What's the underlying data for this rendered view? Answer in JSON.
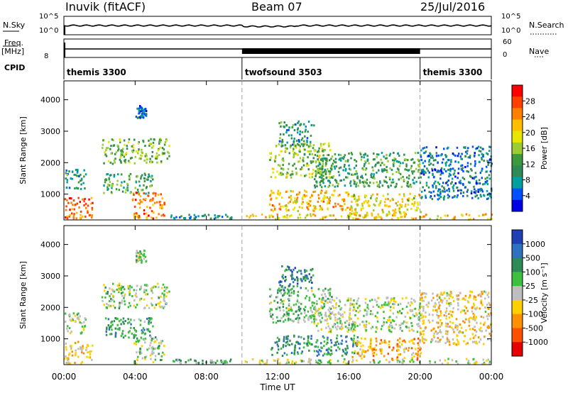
{
  "header": {
    "station": "Inuvik (fitACF)",
    "beam": "Beam 07",
    "date": "25/Jul/2016"
  },
  "side_labels": {
    "nsky": "N.Sky",
    "nsearch": "N.Search",
    "freq": "Freq.",
    "mhz": "[MHz]",
    "nave": "Nave",
    "cpid": "CPID",
    "nsky_ticks": [
      "10^5",
      "10^0"
    ],
    "nsearch_ticks": [
      "10^5",
      "10^0"
    ],
    "freq_ticks": [
      "8"
    ],
    "nave_ticks": [
      "60",
      "0"
    ]
  },
  "cpid_segments": [
    {
      "label": "themis 3300",
      "start": 0,
      "end": 10
    },
    {
      "label": "twofsound 3503",
      "start": 10,
      "end": 20
    },
    {
      "label": "themis 3300",
      "start": 20,
      "end": 24
    }
  ],
  "chart_data": [
    {
      "type": "heatmap",
      "quantity": "Power",
      "ylabel": "Slant Range [km]",
      "xlabel": "Time UT",
      "xlim": [
        0,
        24
      ],
      "ylim": [
        180,
        4600
      ],
      "yticks": [
        "1000",
        "2000",
        "3000",
        "4000"
      ],
      "xticks": [
        "00:00",
        "04:00",
        "08:00",
        "12:00",
        "16:00",
        "20:00",
        "00:00"
      ],
      "colorbar": {
        "label": "Power [dB]",
        "ticks": [
          "28",
          "24",
          "20",
          "16",
          "12",
          "8",
          "4"
        ],
        "colors": [
          "#ff0000",
          "#ff4000",
          "#ff8000",
          "#ffbf00",
          "#e6e600",
          "#9acd32",
          "#3c9a3c",
          "#2e8b57",
          "#00a0a0",
          "#0050ff",
          "#0000e6"
        ]
      },
      "regions": [
        {
          "t0": 0.0,
          "t1": 1.6,
          "r0": 200,
          "r1": 900,
          "level": 0.85
        },
        {
          "t0": 0.0,
          "t1": 1.2,
          "r0": 1150,
          "r1": 1800,
          "level": 0.3
        },
        {
          "t0": 2.2,
          "t1": 5.0,
          "r0": 1000,
          "r1": 1650,
          "level": 0.35
        },
        {
          "t0": 3.8,
          "t1": 5.6,
          "r0": 200,
          "r1": 1050,
          "level": 0.8
        },
        {
          "t0": 2.1,
          "t1": 5.9,
          "r0": 1950,
          "r1": 2750,
          "level": 0.45
        },
        {
          "t0": 5.8,
          "t1": 9.6,
          "r0": 200,
          "r1": 330,
          "level": 0.25
        },
        {
          "t0": 10.0,
          "t1": 24.0,
          "r0": 180,
          "r1": 350,
          "level": 0.65
        },
        {
          "t0": 11.5,
          "t1": 16.5,
          "r0": 450,
          "r1": 1100,
          "level": 0.7
        },
        {
          "t0": 16.0,
          "t1": 20.0,
          "r0": 300,
          "r1": 1000,
          "level": 0.6
        },
        {
          "t0": 11.5,
          "t1": 15.0,
          "r0": 1500,
          "r1": 2600,
          "level": 0.5
        },
        {
          "t0": 14.0,
          "t1": 20.0,
          "r0": 1200,
          "r1": 2300,
          "level": 0.35
        },
        {
          "t0": 20.0,
          "t1": 24.0,
          "r0": 800,
          "r1": 2500,
          "level": 0.2
        },
        {
          "t0": 12.0,
          "t1": 14.0,
          "r0": 2500,
          "r1": 3300,
          "level": 0.3
        },
        {
          "t0": 4.0,
          "t1": 4.6,
          "r0": 3400,
          "r1": 3800,
          "level": 0.15
        }
      ]
    },
    {
      "type": "heatmap",
      "quantity": "Velocity",
      "ylabel": "Slant Range [km]",
      "xlabel": "Time UT",
      "xlim": [
        0,
        24
      ],
      "ylim": [
        180,
        4600
      ],
      "yticks": [
        "1000",
        "2000",
        "3000",
        "4000"
      ],
      "xticks": [
        "00:00",
        "04:00",
        "08:00",
        "12:00",
        "16:00",
        "20:00",
        "00:00"
      ],
      "colorbar": {
        "label": "Velocity [m s⁻¹]",
        "ticks": [
          "1000",
          "500",
          "100",
          "25",
          "-25",
          "-100",
          "-500",
          "-1000"
        ],
        "colors": [
          "#1f3fb5",
          "#2f70c0",
          "#2e8b57",
          "#3fbf3f",
          "#bebebe",
          "#ffcf00",
          "#ff9000",
          "#ff5000",
          "#e60000"
        ]
      },
      "regions": [
        {
          "t0": 0.0,
          "t1": 1.6,
          "r0": 200,
          "r1": 900,
          "level": 0.62
        },
        {
          "t0": 0.0,
          "t1": 1.2,
          "r0": 1150,
          "r1": 1800,
          "level": 0.45
        },
        {
          "t0": 2.2,
          "t1": 5.0,
          "r0": 1000,
          "r1": 1650,
          "level": 0.3
        },
        {
          "t0": 3.8,
          "t1": 5.6,
          "r0": 200,
          "r1": 1050,
          "level": 0.45
        },
        {
          "t0": 2.1,
          "t1": 5.9,
          "r0": 1950,
          "r1": 2750,
          "level": 0.45
        },
        {
          "t0": 5.8,
          "t1": 9.6,
          "r0": 200,
          "r1": 330,
          "level": 0.35
        },
        {
          "t0": 10.0,
          "t1": 24.0,
          "r0": 180,
          "r1": 350,
          "level": 0.48
        },
        {
          "t0": 11.5,
          "t1": 16.5,
          "r0": 450,
          "r1": 1100,
          "level": 0.25
        },
        {
          "t0": 16.0,
          "t1": 20.0,
          "r0": 300,
          "r1": 1000,
          "level": 0.7
        },
        {
          "t0": 11.5,
          "t1": 15.0,
          "r0": 1500,
          "r1": 2600,
          "level": 0.4
        },
        {
          "t0": 14.0,
          "t1": 20.0,
          "r0": 1200,
          "r1": 2300,
          "level": 0.48
        },
        {
          "t0": 20.0,
          "t1": 24.0,
          "r0": 800,
          "r1": 2500,
          "level": 0.6
        },
        {
          "t0": 12.0,
          "t1": 14.0,
          "r0": 2500,
          "r1": 3300,
          "level": 0.2
        },
        {
          "t0": 4.0,
          "t1": 4.6,
          "r0": 3400,
          "r1": 3800,
          "level": 0.45
        }
      ]
    }
  ]
}
